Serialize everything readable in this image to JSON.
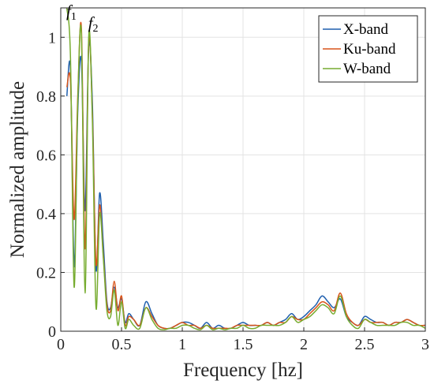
{
  "chart_data": {
    "type": "line",
    "xlabel": "Frequency [hz]",
    "ylabel": "Normalized amplitude",
    "xlim": [
      0,
      3
    ],
    "ylim": [
      0,
      1.1
    ],
    "xticks": [
      0,
      0.5,
      1,
      1.5,
      2,
      2.5,
      3
    ],
    "xtick_labels": [
      "0",
      "0.5",
      "1",
      "1.5",
      "2",
      "2.5",
      "3"
    ],
    "yticks": [
      0,
      0.2,
      0.4,
      0.6,
      0.8,
      1
    ],
    "ytick_labels": [
      "0",
      "0.2",
      "0.4",
      "0.6",
      "0.8",
      "1"
    ],
    "grid": true,
    "legend_position": "top-right",
    "annotations": [
      {
        "main": "f",
        "sub": "1",
        "x": 0.1,
        "y": 1.07
      },
      {
        "main": "f",
        "sub": "2",
        "x": 0.28,
        "y": 1.03
      }
    ],
    "series": [
      {
        "name": "X-band",
        "color": "#1f5fae",
        "x": [
          0.05,
          0.08,
          0.11,
          0.14,
          0.17,
          0.2,
          0.23,
          0.26,
          0.29,
          0.32,
          0.35,
          0.38,
          0.41,
          0.44,
          0.47,
          0.5,
          0.53,
          0.56,
          0.6,
          0.65,
          0.7,
          0.75,
          0.8,
          0.85,
          0.9,
          0.95,
          1.0,
          1.05,
          1.1,
          1.15,
          1.2,
          1.25,
          1.3,
          1.35,
          1.4,
          1.45,
          1.5,
          1.55,
          1.6,
          1.65,
          1.7,
          1.75,
          1.8,
          1.85,
          1.9,
          1.95,
          2.0,
          2.05,
          2.1,
          2.15,
          2.2,
          2.25,
          2.3,
          2.35,
          2.4,
          2.45,
          2.5,
          2.55,
          2.6,
          2.65,
          2.7,
          2.75,
          2.8,
          2.85,
          2.9,
          2.95,
          3.0
        ],
        "y": [
          0.8,
          0.89,
          0.22,
          0.75,
          0.92,
          0.41,
          0.97,
          0.78,
          0.21,
          0.47,
          0.3,
          0.1,
          0.08,
          0.15,
          0.08,
          0.11,
          0.03,
          0.06,
          0.04,
          0.02,
          0.1,
          0.06,
          0.02,
          0.01,
          0.01,
          0.02,
          0.03,
          0.03,
          0.02,
          0.01,
          0.03,
          0.01,
          0.02,
          0.01,
          0.01,
          0.02,
          0.03,
          0.02,
          0.02,
          0.02,
          0.03,
          0.02,
          0.03,
          0.04,
          0.06,
          0.04,
          0.05,
          0.07,
          0.09,
          0.12,
          0.1,
          0.08,
          0.11,
          0.05,
          0.03,
          0.02,
          0.05,
          0.04,
          0.03,
          0.03,
          0.02,
          0.03,
          0.03,
          0.04,
          0.03,
          0.02,
          0.02
        ]
      },
      {
        "name": "Ku-band",
        "color": "#d9541a",
        "x": [
          0.05,
          0.08,
          0.11,
          0.14,
          0.17,
          0.2,
          0.23,
          0.26,
          0.29,
          0.32,
          0.35,
          0.38,
          0.41,
          0.44,
          0.47,
          0.5,
          0.53,
          0.56,
          0.6,
          0.65,
          0.7,
          0.75,
          0.8,
          0.85,
          0.9,
          0.95,
          1.0,
          1.05,
          1.1,
          1.15,
          1.2,
          1.25,
          1.3,
          1.35,
          1.4,
          1.45,
          1.5,
          1.55,
          1.6,
          1.65,
          1.7,
          1.75,
          1.8,
          1.85,
          1.9,
          1.95,
          2.0,
          2.05,
          2.1,
          2.15,
          2.2,
          2.25,
          2.3,
          2.35,
          2.4,
          2.45,
          2.5,
          2.55,
          2.6,
          2.65,
          2.7,
          2.75,
          2.8,
          2.85,
          2.9,
          2.95,
          3.0
        ],
        "y": [
          0.83,
          0.85,
          0.38,
          0.8,
          1.03,
          0.28,
          0.99,
          0.74,
          0.23,
          0.43,
          0.26,
          0.09,
          0.07,
          0.17,
          0.07,
          0.12,
          0.02,
          0.05,
          0.04,
          0.02,
          0.08,
          0.05,
          0.02,
          0.01,
          0.01,
          0.02,
          0.03,
          0.02,
          0.02,
          0.01,
          0.02,
          0.01,
          0.01,
          0.01,
          0.01,
          0.02,
          0.02,
          0.02,
          0.02,
          0.02,
          0.03,
          0.02,
          0.03,
          0.03,
          0.05,
          0.04,
          0.04,
          0.06,
          0.08,
          0.1,
          0.09,
          0.07,
          0.13,
          0.06,
          0.03,
          0.02,
          0.04,
          0.03,
          0.03,
          0.03,
          0.02,
          0.03,
          0.03,
          0.04,
          0.03,
          0.02,
          0.02
        ]
      },
      {
        "name": "W-band",
        "color": "#77ac30",
        "x": [
          0.05,
          0.08,
          0.11,
          0.14,
          0.17,
          0.2,
          0.23,
          0.26,
          0.29,
          0.32,
          0.35,
          0.38,
          0.41,
          0.44,
          0.47,
          0.5,
          0.53,
          0.56,
          0.6,
          0.65,
          0.7,
          0.75,
          0.8,
          0.85,
          0.9,
          0.95,
          1.0,
          1.05,
          1.1,
          1.15,
          1.2,
          1.25,
          1.3,
          1.35,
          1.4,
          1.45,
          1.5,
          1.55,
          1.6,
          1.65,
          1.7,
          1.75,
          1.8,
          1.85,
          1.9,
          1.95,
          2.0,
          2.05,
          2.1,
          2.15,
          2.2,
          2.25,
          2.3,
          2.35,
          2.4,
          2.45,
          2.5,
          2.55,
          2.6,
          2.65,
          2.7,
          2.75,
          2.8,
          2.85,
          2.9,
          2.95,
          3.0
        ],
        "y": [
          1.1,
          0.93,
          0.15,
          0.78,
          1.01,
          0.13,
          1.0,
          0.72,
          0.08,
          0.4,
          0.25,
          0.07,
          0.05,
          0.14,
          0.02,
          0.1,
          0.01,
          0.04,
          0.02,
          0.01,
          0.08,
          0.04,
          0.01,
          0.005,
          0.01,
          0.01,
          0.02,
          0.02,
          0.01,
          0.005,
          0.02,
          0.005,
          0.01,
          0.005,
          0.01,
          0.01,
          0.02,
          0.01,
          0.01,
          0.02,
          0.02,
          0.02,
          0.02,
          0.03,
          0.05,
          0.03,
          0.04,
          0.05,
          0.07,
          0.09,
          0.08,
          0.06,
          0.12,
          0.05,
          0.02,
          0.01,
          0.04,
          0.03,
          0.02,
          0.02,
          0.02,
          0.02,
          0.03,
          0.03,
          0.02,
          0.02,
          0.01
        ]
      }
    ]
  }
}
